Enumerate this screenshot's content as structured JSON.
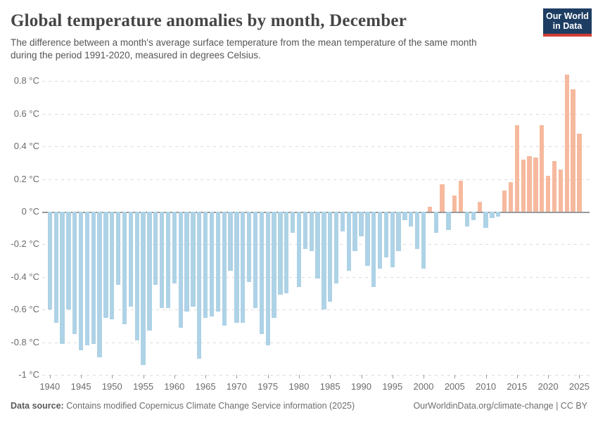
{
  "header": {
    "title": "Global temperature anomalies by month, December",
    "subtitle_line1": "The difference between a month's average surface temperature from the mean temperature of the same month",
    "subtitle_line2": "during the period 1991-2020, measured in degrees Celsius.",
    "logo": {
      "line1": "Our World",
      "line2": "in Data"
    }
  },
  "footer": {
    "datasource_label": "Data source:",
    "datasource_text": " Contains modified Copernicus Climate Change Service information (2025)",
    "site_text": "OurWorldinData.org/climate-change | CC BY"
  },
  "chart_data": {
    "type": "bar",
    "title": "Global temperature anomalies by month, December",
    "xlabel": "",
    "ylabel": "",
    "unit": "°C",
    "x": [
      1940,
      1941,
      1942,
      1943,
      1944,
      1945,
      1946,
      1947,
      1948,
      1949,
      1950,
      1951,
      1952,
      1953,
      1954,
      1955,
      1956,
      1957,
      1958,
      1959,
      1960,
      1961,
      1962,
      1963,
      1964,
      1965,
      1966,
      1967,
      1968,
      1969,
      1970,
      1971,
      1972,
      1973,
      1974,
      1975,
      1976,
      1977,
      1978,
      1979,
      1980,
      1981,
      1982,
      1983,
      1984,
      1985,
      1986,
      1987,
      1988,
      1989,
      1990,
      1991,
      1992,
      1993,
      1994,
      1995,
      1996,
      1997,
      1998,
      1999,
      2000,
      2001,
      2002,
      2003,
      2004,
      2005,
      2006,
      2007,
      2008,
      2009,
      2010,
      2011,
      2012,
      2013,
      2014,
      2015,
      2016,
      2017,
      2018,
      2019,
      2020,
      2021,
      2022,
      2023,
      2024,
      2025
    ],
    "values": [
      -0.6,
      -0.68,
      -0.81,
      -0.6,
      -0.75,
      -0.85,
      -0.82,
      -0.81,
      -0.89,
      -0.65,
      -0.66,
      -0.45,
      -0.69,
      -0.58,
      -0.79,
      -0.94,
      -0.73,
      -0.45,
      -0.59,
      -0.59,
      -0.44,
      -0.71,
      -0.61,
      -0.58,
      -0.9,
      -0.65,
      -0.64,
      -0.61,
      -0.7,
      -0.36,
      -0.68,
      -0.68,
      -0.43,
      -0.59,
      -0.75,
      -0.82,
      -0.65,
      -0.51,
      -0.5,
      -0.13,
      -0.46,
      -0.23,
      -0.24,
      -0.41,
      -0.6,
      -0.55,
      -0.44,
      -0.12,
      -0.36,
      -0.24,
      -0.15,
      -0.33,
      -0.46,
      -0.35,
      -0.28,
      -0.34,
      -0.24,
      -0.05,
      -0.09,
      -0.23,
      -0.35,
      0.03,
      -0.13,
      0.17,
      -0.11,
      0.1,
      0.19,
      -0.09,
      -0.05,
      0.06,
      -0.1,
      -0.04,
      -0.03,
      0.13,
      0.18,
      0.53,
      0.32,
      0.34,
      0.33,
      0.53,
      0.22,
      0.31,
      0.26,
      0.84,
      0.75,
      0.48
    ],
    "xticks": [
      1940,
      1945,
      1950,
      1955,
      1960,
      1965,
      1970,
      1975,
      1980,
      1985,
      1990,
      1995,
      2000,
      2005,
      2010,
      2015,
      2020,
      2025
    ],
    "yticks": [
      0.8,
      0.6,
      0.4,
      0.2,
      0,
      -0.2,
      -0.4,
      -0.6,
      -0.8,
      -1
    ],
    "ytick_labels": [
      "0.8 °C",
      "0.6 °C",
      "0.4 °C",
      "0.2 °C",
      "0 °C",
      "-0.2 °C",
      "-0.4 °C",
      "-0.6 °C",
      "-0.8 °C",
      "-1 °C"
    ],
    "ylim": [
      -1,
      0.87
    ],
    "grid": "horizontal-dashed",
    "legend": "none",
    "colors": {
      "positive": "#f6b99e",
      "negative": "#aed2e6",
      "zero_line": "#999999"
    }
  }
}
